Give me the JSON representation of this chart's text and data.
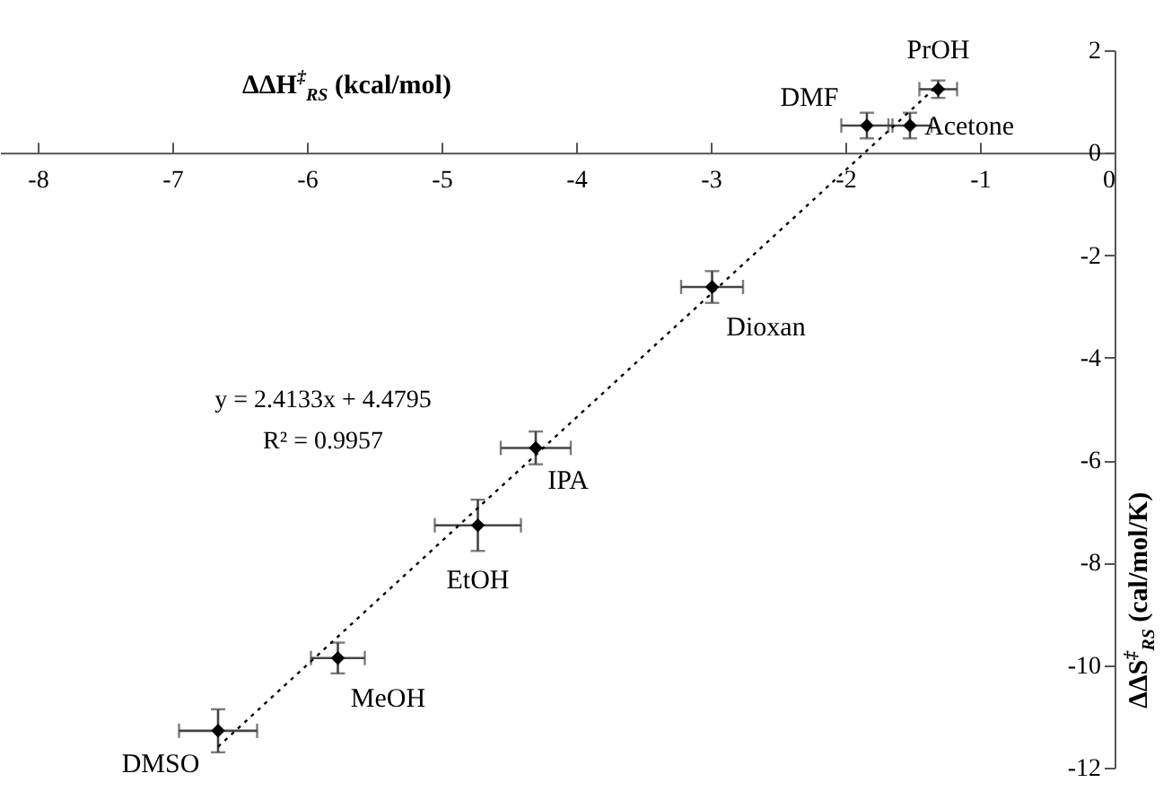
{
  "chart_data": {
    "type": "scatter",
    "xlabel": "ΔΔH$^{‡}$$_{RS}$ (kcal/mol)",
    "ylabel": "ΔΔS$^{‡}$$_{RS}$ (cal/mol/K)",
    "xlim": [
      -8.28,
      0
    ],
    "xticks": [
      -8,
      -7,
      -6,
      -5,
      -4,
      -3,
      -2,
      -1,
      0
    ],
    "ylim": [
      -12,
      2
    ],
    "yticks": [
      -12,
      -10,
      -8,
      -6,
      -4,
      -2,
      0,
      2
    ],
    "grid": false,
    "marker": "diamond",
    "series": [
      {
        "color": "#000000",
        "x": [
          -1.31,
          -1.84,
          -1.52,
          -2.99,
          -4.3,
          -4.73,
          -5.77,
          -6.66
        ],
        "values": [
          1.24,
          0.53,
          0.53,
          -2.62,
          -5.76,
          -7.27,
          -9.86,
          -11.28
        ],
        "xerrors": [
          0.14,
          0.19,
          0.16,
          0.23,
          0.26,
          0.32,
          0.2,
          0.29
        ],
        "errors": [
          0.17,
          0.25,
          0.25,
          0.31,
          0.32,
          0.5,
          0.3,
          0.42
        ]
      },
      {
        "type": "line",
        "color": "#000000",
        "line_style": "dotted",
        "marker": "none",
        "x": [
          -6.66,
          -1.31
        ],
        "values": [
          -11.59,
          1.32
        ]
      }
    ],
    "annotations": [
      {
        "text": "PrOH",
        "x": -1.31,
        "y": 1.24
      },
      {
        "text": "DMF",
        "x": -1.84,
        "y": 0.53
      },
      {
        "text": "Acetone",
        "x": -1.52,
        "y": 0.53
      },
      {
        "text": "Dioxan",
        "x": -2.99,
        "y": -2.62
      },
      {
        "text": "IPA",
        "x": -4.3,
        "y": -5.76
      },
      {
        "text": "EtOH",
        "x": -4.73,
        "y": -7.27
      },
      {
        "text": "MeOH",
        "x": -5.77,
        "y": -9.86
      },
      {
        "text": "DMSO",
        "x": -6.66,
        "y": -11.28
      },
      "y = 2.4133x + 4.4795",
      "R² = 0.9957"
    ]
  }
}
